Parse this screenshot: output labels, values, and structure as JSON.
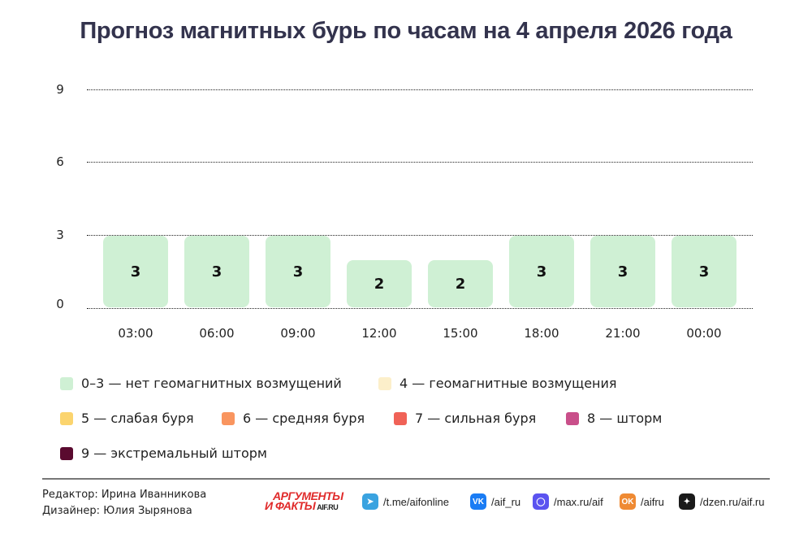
{
  "title": "Прогноз магнитных бурь по часам на 4 апреля 2026 года",
  "chart_data": {
    "type": "bar",
    "title": "Прогноз магнитных бурь по часам на 4 апреля 2026 года",
    "categories": [
      "03:00",
      "06:00",
      "09:00",
      "12:00",
      "15:00",
      "18:00",
      "21:00",
      "00:00"
    ],
    "values": [
      3,
      3,
      3,
      2,
      2,
      3,
      3,
      3
    ],
    "value_labels": [
      "3",
      "3",
      "3",
      "2",
      "2",
      "3",
      "3",
      "3"
    ],
    "xlabel": "",
    "ylabel": "",
    "ylim": [
      0,
      9
    ],
    "yticks": [
      "9",
      "6",
      "3",
      "0"
    ],
    "grid": true,
    "bar_color": "#cff0d4",
    "legend_position": "bottom",
    "legend": [
      {
        "label": "0–3 — нет геомагнитных возмущений",
        "color": "#cff0d4"
      },
      {
        "label": "4 — геомагнитные возмущения",
        "color": "#fcefca"
      },
      {
        "label": "5 — слабая буря",
        "color": "#fbd46e"
      },
      {
        "label": "6 — средняя буря",
        "color": "#f9955f"
      },
      {
        "label": "7 — сильная буря",
        "color": "#f06257"
      },
      {
        "label": "8 — шторм",
        "color": "#c94f8a"
      },
      {
        "label": "9 — экстремальный шторм",
        "color": "#5a0a2f"
      }
    ]
  },
  "footer": {
    "editor": "Редактор: Ирина Иванникова",
    "designer": "Дизайнер: Юлия Зырянова",
    "logo_line1": "АРГУМЕНТЫ",
    "logo_line2": "И ФАКТЫ",
    "logo_site": "AIF.RU",
    "socials": [
      {
        "icon": "telegram-icon",
        "label": "/t.me/aifonline",
        "color": "#3aa3e0"
      },
      {
        "icon": "vk-icon",
        "label": "/aif_ru",
        "color": "#1a7cf4"
      },
      {
        "icon": "max-icon",
        "label": "/max.ru/aif",
        "color": "#5b53f0"
      },
      {
        "icon": "odnoklassniki-icon",
        "label": "/aifru",
        "color": "#ef8a33"
      },
      {
        "icon": "dzen-icon",
        "label": "/dzen.ru/aif.ru",
        "color": "#1a1a1a"
      }
    ]
  }
}
